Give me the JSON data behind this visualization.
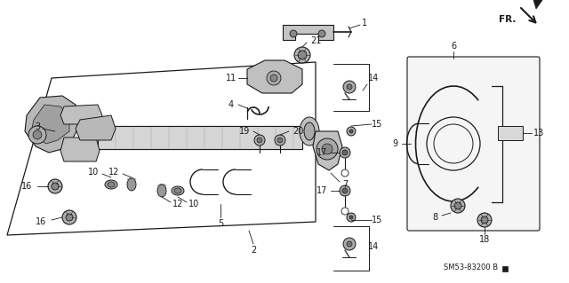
{
  "bg_color": "#ffffff",
  "dark": "#1a1a1a",
  "gray1": "#888888",
  "gray2": "#aaaaaa",
  "gray3": "#cccccc",
  "figsize": [
    6.4,
    3.19
  ],
  "dpi": 100,
  "code": "SM53-83200 B",
  "xlim": [
    0,
    640
  ],
  "ylim": [
    0,
    319
  ]
}
